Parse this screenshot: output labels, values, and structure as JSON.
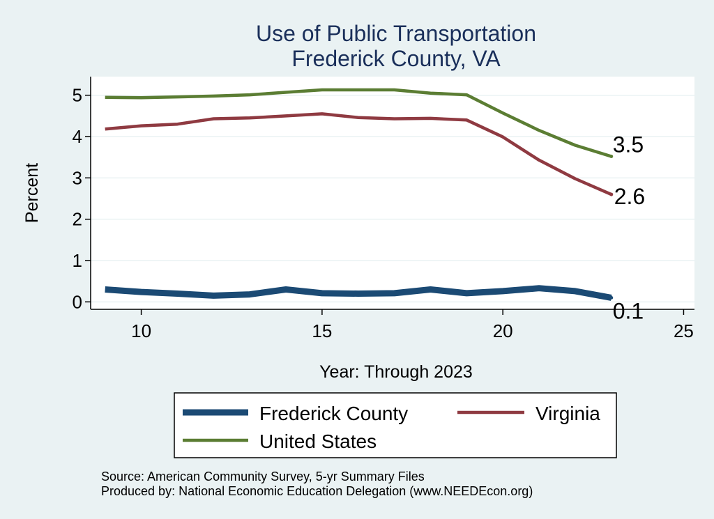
{
  "colors": {
    "background": "#eaf2f3",
    "plot_background": "#ffffff",
    "grid": "#eaf2f3",
    "title": "#1a2f5a",
    "frederick": "#1b4a74",
    "virginia": "#8f3a41",
    "united_states": "#5b7d33"
  },
  "notes": {
    "source": "Source: American Community Survey, 5-yr Summary Files",
    "produced": "Produced by: National Economic Education Delegation (www.NEEDEcon.org)"
  },
  "chart_data": {
    "type": "line",
    "title": "Use of Public Transportation",
    "subtitle": "Frederick County, VA",
    "xlabel": "Year: Through 2023",
    "ylabel": "Percent",
    "xlim": [
      8.6,
      25.3
    ],
    "ylim": [
      -0.18,
      5.45
    ],
    "xticks": [
      10,
      15,
      20,
      25
    ],
    "yticks": [
      0,
      1,
      2,
      3,
      4,
      5
    ],
    "grid": true,
    "legend_position": "bottom",
    "x": [
      9,
      10,
      11,
      12,
      13,
      14,
      15,
      16,
      17,
      18,
      19,
      20,
      21,
      22,
      23
    ],
    "series": [
      {
        "name": "Frederick County",
        "color": "#1b4a74",
        "line_width": 9,
        "values": [
          0.3,
          0.24,
          0.2,
          0.15,
          0.18,
          0.3,
          0.21,
          0.2,
          0.21,
          0.3,
          0.21,
          0.26,
          0.33,
          0.26,
          0.1
        ],
        "end_label": "0.1"
      },
      {
        "name": "Virginia",
        "color": "#8f3a41",
        "line_width": 4.5,
        "values": [
          4.18,
          4.26,
          4.3,
          4.43,
          4.45,
          4.5,
          4.55,
          4.46,
          4.43,
          4.44,
          4.4,
          3.99,
          3.43,
          2.98,
          2.6
        ],
        "end_label": "2.6"
      },
      {
        "name": "United States",
        "color": "#5b7d33",
        "line_width": 4.5,
        "values": [
          4.95,
          4.94,
          4.96,
          4.98,
          5.01,
          5.07,
          5.13,
          5.13,
          5.13,
          5.05,
          5.01,
          4.57,
          4.15,
          3.79,
          3.52
        ],
        "end_label": "3.5"
      }
    ]
  }
}
